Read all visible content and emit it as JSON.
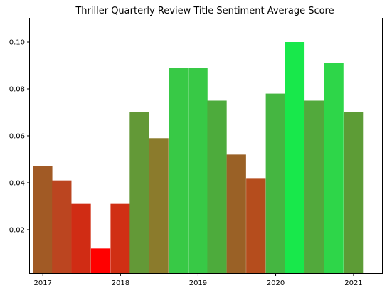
{
  "chart_data": {
    "type": "bar",
    "title": "Thriller Quarterly Review Title Sentiment Average Score",
    "xlabel": "",
    "ylabel": "",
    "x_axis": "date",
    "ylim": [
      0.0015,
      0.11
    ],
    "xlim": [
      "2016-11-01",
      "2021-05-15"
    ],
    "xticks": [
      {
        "date": "2017-01-01",
        "label": "2017"
      },
      {
        "date": "2018-01-01",
        "label": "2018"
      },
      {
        "date": "2019-01-01",
        "label": "2019"
      },
      {
        "date": "2020-01-01",
        "label": "2020"
      },
      {
        "date": "2021-01-01",
        "label": "2021"
      }
    ],
    "yticks": [
      {
        "value": 0.02,
        "label": "0.02"
      },
      {
        "value": 0.04,
        "label": "0.04"
      },
      {
        "value": 0.06,
        "label": "0.06"
      },
      {
        "value": 0.08,
        "label": "0.08"
      },
      {
        "value": 0.1,
        "label": "0.10"
      }
    ],
    "bars": [
      {
        "quarter": "2016-12-31",
        "value": 0.047,
        "color": "#a15a25"
      },
      {
        "quarter": "2017-03-31",
        "value": 0.041,
        "color": "#bb4520"
      },
      {
        "quarter": "2017-06-30",
        "value": 0.031,
        "color": "#d02c14"
      },
      {
        "quarter": "2017-09-30",
        "value": 0.012,
        "color": "#ff0000"
      },
      {
        "quarter": "2017-12-31",
        "value": 0.031,
        "color": "#d02f14"
      },
      {
        "quarter": "2018-03-31",
        "value": 0.07,
        "color": "#639937"
      },
      {
        "quarter": "2018-06-30",
        "value": 0.059,
        "color": "#8b7b2c"
      },
      {
        "quarter": "2018-09-30",
        "value": 0.089,
        "color": "#38c946"
      },
      {
        "quarter": "2018-12-31",
        "value": 0.089,
        "color": "#38c946"
      },
      {
        "quarter": "2019-03-31",
        "value": 0.075,
        "color": "#4dab3c"
      },
      {
        "quarter": "2019-06-30",
        "value": 0.052,
        "color": "#9a6126"
      },
      {
        "quarter": "2019-09-30",
        "value": 0.042,
        "color": "#b54d1d"
      },
      {
        "quarter": "2019-12-31",
        "value": 0.078,
        "color": "#45b641"
      },
      {
        "quarter": "2020-03-31",
        "value": 0.1,
        "color": "#18e84b"
      },
      {
        "quarter": "2020-06-30",
        "value": 0.075,
        "color": "#52a93c"
      },
      {
        "quarter": "2020-09-30",
        "value": 0.091,
        "color": "#2ed649"
      },
      {
        "quarter": "2020-12-31",
        "value": 0.07,
        "color": "#5d9c36"
      }
    ],
    "grid": false,
    "legend": "none"
  }
}
